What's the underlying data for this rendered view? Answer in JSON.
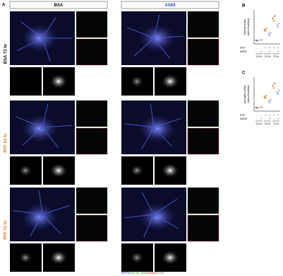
{
  "panel_a": {
    "label": "A",
    "columns": [
      "BSA",
      "AS69"
    ],
    "rows": [
      "BSA 72 hr",
      "PFF 24 hr",
      "PFF 72 hr"
    ],
    "legend": [
      "MAP2",
      "/",
      "human αSyn",
      "/",
      "pαSyn",
      "/",
      "AS69"
    ]
  },
  "panel_b": {
    "label": "B",
    "y_label": [
      "human αSyn",
      "(area fraction)"
    ],
    "row_labels": [
      "PFF",
      "AS69"
    ],
    "pff": [
      "-",
      "-",
      "+",
      "+",
      "+",
      "+"
    ],
    "as69": [
      "-",
      "+",
      "-",
      "+",
      "-",
      "+"
    ],
    "times": [
      "24 hr",
      "24 hr",
      "72 hr"
    ]
  },
  "panel_c": {
    "label": "C",
    "y_label": [
      "phospho-αSyn",
      "(area fraction)"
    ],
    "row_labels": [
      "PFF",
      "AS69"
    ],
    "pff": [
      "-",
      "-",
      "+",
      "+",
      "+",
      "+"
    ],
    "as69": [
      "-",
      "+",
      "-",
      "+",
      "-",
      "+"
    ],
    "times": [
      "24 hr",
      "24 hr",
      "72 hr"
    ]
  }
}
